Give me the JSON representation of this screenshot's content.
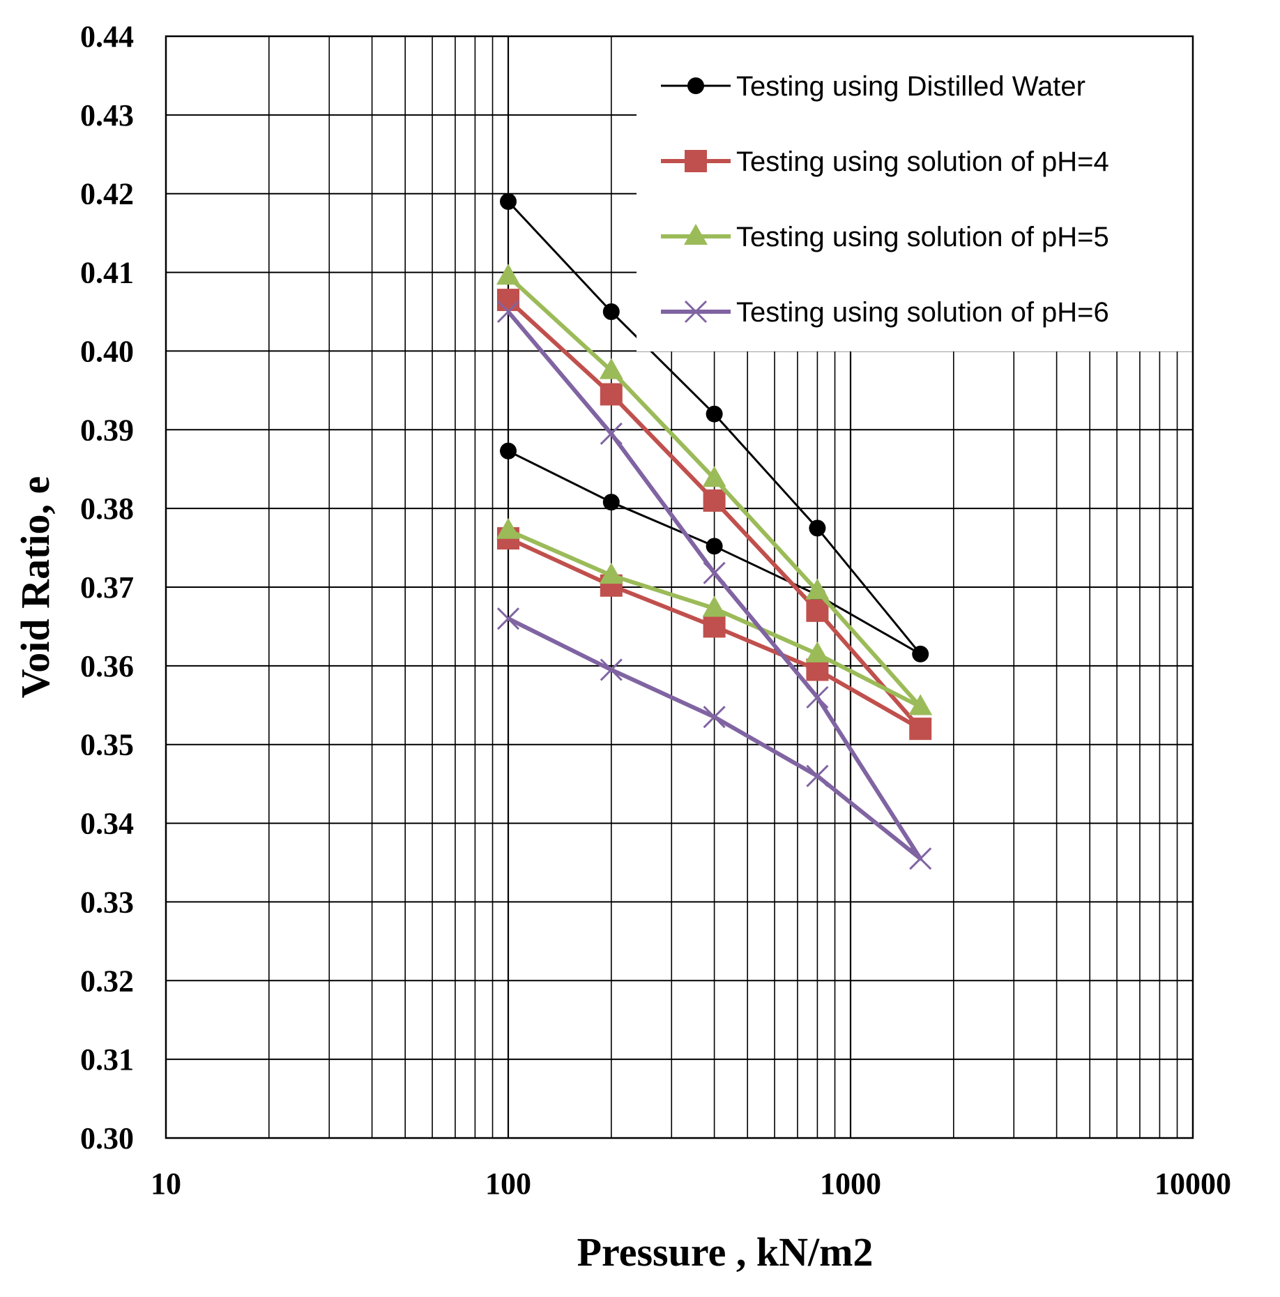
{
  "chart_data": {
    "type": "line",
    "title": "",
    "xlabel": "Pressure , kN/m2",
    "ylabel": "Void Ratio, e",
    "xscale": "log",
    "xlim": [
      10,
      10000
    ],
    "ylim": [
      0.3,
      0.44
    ],
    "xticks": [
      10,
      100,
      1000,
      10000
    ],
    "xtick_labels": [
      "10",
      "100",
      "1000",
      "10000"
    ],
    "yticks": [
      0.3,
      0.31,
      0.32,
      0.33,
      0.34,
      0.35,
      0.36,
      0.37,
      0.38,
      0.39,
      0.4,
      0.41,
      0.42,
      0.43,
      0.44
    ],
    "ytick_labels": [
      "0.30",
      "0.31",
      "0.32",
      "0.33",
      "0.34",
      "0.35",
      "0.36",
      "0.37",
      "0.38",
      "0.39",
      "0.40",
      "0.41",
      "0.42",
      "0.43",
      "0.44"
    ],
    "grid": true,
    "legend_position": "top-right",
    "series": [
      {
        "name": "Testing using Distilled Water",
        "color": "#000000",
        "marker": "circle",
        "points": [
          [
            100,
            0.419
          ],
          [
            200,
            0.405
          ],
          [
            400,
            0.392
          ],
          [
            800,
            0.3775
          ],
          [
            1600,
            0.3615
          ],
          [
            800,
            0.369
          ],
          [
            400,
            0.3752
          ],
          [
            200,
            0.3808
          ],
          [
            100,
            0.3873
          ]
        ]
      },
      {
        "name": "Testing using solution of pH=4",
        "color": "#c0504d",
        "marker": "square",
        "points": [
          [
            100,
            0.4065
          ],
          [
            200,
            0.3945
          ],
          [
            400,
            0.381
          ],
          [
            800,
            0.367
          ],
          [
            1600,
            0.352
          ],
          [
            800,
            0.3595
          ],
          [
            400,
            0.365
          ],
          [
            200,
            0.3702
          ],
          [
            100,
            0.3762
          ]
        ]
      },
      {
        "name": "Testing using solution of pH=5",
        "color": "#9bbb59",
        "marker": "triangle",
        "points": [
          [
            100,
            0.4095
          ],
          [
            200,
            0.3975
          ],
          [
            400,
            0.3838
          ],
          [
            800,
            0.3695
          ],
          [
            1600,
            0.3548
          ],
          [
            800,
            0.3615
          ],
          [
            400,
            0.3673
          ],
          [
            200,
            0.3715
          ],
          [
            100,
            0.3772
          ]
        ]
      },
      {
        "name": "Testing using solution of pH=6",
        "color": "#8064a2",
        "marker": "x",
        "points": [
          [
            100,
            0.405
          ],
          [
            200,
            0.3895
          ],
          [
            400,
            0.3718
          ],
          [
            800,
            0.356
          ],
          [
            1600,
            0.3355
          ],
          [
            800,
            0.346
          ],
          [
            400,
            0.3535
          ],
          [
            200,
            0.3595
          ],
          [
            100,
            0.366
          ]
        ]
      }
    ]
  }
}
